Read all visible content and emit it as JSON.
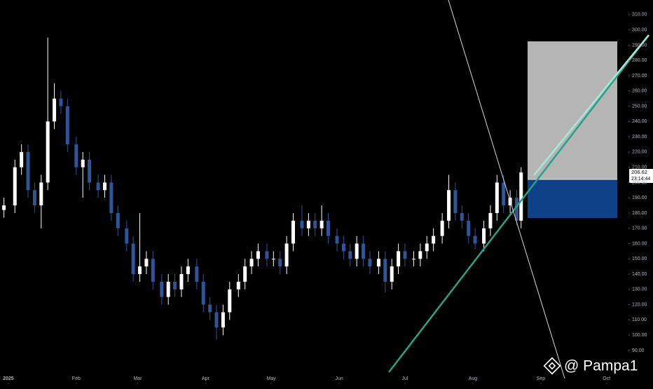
{
  "chart_data": {
    "type": "candlestick",
    "x": [
      -2,
      3,
      6,
      9,
      12,
      15,
      18,
      21,
      24,
      27,
      31,
      34,
      37,
      41,
      44,
      47,
      50,
      54,
      57,
      60,
      63,
      66,
      70,
      73,
      76,
      79,
      82,
      86,
      89,
      92,
      95,
      98,
      101,
      105,
      108,
      111,
      114,
      118,
      121,
      124,
      127,
      130,
      134,
      137,
      140,
      143,
      146,
      150,
      153,
      156,
      159,
      162,
      165,
      169,
      172,
      175,
      178,
      181,
      185,
      188,
      191,
      194,
      198,
      201,
      204,
      207,
      210,
      213,
      217,
      220,
      223,
      226,
      229,
      232,
      234
    ],
    "open": [
      182,
      185,
      210,
      220,
      195,
      185,
      200,
      240,
      255,
      250,
      225,
      210,
      215,
      200,
      195,
      200,
      180,
      170,
      160,
      140,
      145,
      150,
      135,
      125,
      135,
      130,
      140,
      145,
      135,
      120,
      115,
      105,
      115,
      130,
      135,
      145,
      150,
      155,
      150,
      150,
      145,
      160,
      175,
      170,
      175,
      170,
      175,
      165,
      160,
      155,
      150,
      160,
      150,
      145,
      150,
      135,
      145,
      155,
      150,
      150,
      155,
      160,
      165,
      175,
      195,
      180,
      175,
      165,
      160,
      170,
      180,
      200,
      185,
      190,
      175
    ],
    "high": [
      190,
      215,
      225,
      225,
      200,
      205,
      295,
      265,
      260,
      255,
      230,
      220,
      220,
      205,
      205,
      205,
      185,
      175,
      165,
      180,
      155,
      155,
      140,
      140,
      140,
      145,
      150,
      150,
      140,
      125,
      120,
      120,
      135,
      140,
      150,
      155,
      160,
      160,
      155,
      155,
      165,
      180,
      185,
      180,
      180,
      185,
      180,
      170,
      165,
      160,
      165,
      165,
      155,
      155,
      155,
      150,
      160,
      160,
      155,
      160,
      165,
      170,
      180,
      205,
      200,
      185,
      180,
      170,
      175,
      185,
      205,
      205,
      195,
      195,
      210
    ],
    "low": [
      177,
      180,
      205,
      190,
      180,
      170,
      195,
      235,
      245,
      220,
      205,
      190,
      195,
      190,
      190,
      175,
      165,
      155,
      135,
      135,
      140,
      130,
      120,
      120,
      125,
      125,
      135,
      130,
      115,
      110,
      97,
      100,
      110,
      125,
      130,
      140,
      145,
      145,
      145,
      140,
      140,
      155,
      165,
      165,
      165,
      165,
      160,
      155,
      150,
      145,
      145,
      145,
      140,
      140,
      128,
      130,
      140,
      145,
      145,
      145,
      150,
      155,
      160,
      170,
      175,
      170,
      160,
      156,
      155,
      165,
      175,
      180,
      180,
      172,
      170
    ],
    "close": [
      185,
      210,
      220,
      195,
      185,
      200,
      240,
      255,
      250,
      225,
      210,
      215,
      200,
      195,
      200,
      180,
      170,
      160,
      140,
      145,
      150,
      135,
      125,
      135,
      130,
      140,
      145,
      135,
      120,
      115,
      105,
      115,
      130,
      135,
      145,
      150,
      155,
      150,
      150,
      145,
      160,
      175,
      170,
      175,
      170,
      175,
      165,
      160,
      155,
      150,
      160,
      150,
      145,
      150,
      135,
      145,
      155,
      150,
      150,
      155,
      160,
      165,
      175,
      195,
      180,
      175,
      165,
      160,
      170,
      180,
      200,
      185,
      190,
      175,
      206.62
    ],
    "up_color": "#ffffff",
    "down_color": "#2f5596",
    "xlim": [
      -3.8,
      283
    ],
    "xticks": [
      {
        "value": 0,
        "label": "2025"
      },
      {
        "value": 31,
        "label": "Feb"
      },
      {
        "value": 59,
        "label": "Mar"
      },
      {
        "value": 90,
        "label": "Apr"
      },
      {
        "value": 120,
        "label": "May"
      },
      {
        "value": 151,
        "label": "Jun"
      },
      {
        "value": 181,
        "label": "Jul"
      },
      {
        "value": 212,
        "label": "Aug"
      },
      {
        "value": 243,
        "label": "Sep"
      },
      {
        "value": 273,
        "label": "Oct"
      }
    ],
    "ylim": [
      67,
      319.6
    ],
    "yticks": [
      {
        "value": 90,
        "label": "90.00"
      },
      {
        "value": 100,
        "label": "100.00"
      },
      {
        "value": 110,
        "label": "110.00"
      },
      {
        "value": 120,
        "label": "120.00"
      },
      {
        "value": 130,
        "label": "130.00"
      },
      {
        "value": 140,
        "label": "140.00"
      },
      {
        "value": 150,
        "label": "150.00"
      },
      {
        "value": 160,
        "label": "160.00"
      },
      {
        "value": 170,
        "label": "170.00"
      },
      {
        "value": 180,
        "label": "180.00"
      },
      {
        "value": 190,
        "label": "190.00"
      },
      {
        "value": 200,
        "label": "200.00"
      },
      {
        "value": 210,
        "label": "210.00"
      },
      {
        "value": 220,
        "label": "220.00"
      },
      {
        "value": 230,
        "label": "230.00"
      },
      {
        "value": 240,
        "label": "240.00"
      },
      {
        "value": 250,
        "label": "250.00"
      },
      {
        "value": 260,
        "label": "260.00"
      },
      {
        "value": 270,
        "label": "270.00"
      },
      {
        "value": 280,
        "label": "280.00"
      },
      {
        "value": 290,
        "label": "290.00"
      },
      {
        "value": 300,
        "label": "300.00"
      },
      {
        "value": 310,
        "label": "310.00"
      }
    ],
    "last_price": {
      "value": 206.62,
      "label": "206.62"
    },
    "countdown": "23:14:44",
    "watermark": "@ Pampa1"
  }
}
